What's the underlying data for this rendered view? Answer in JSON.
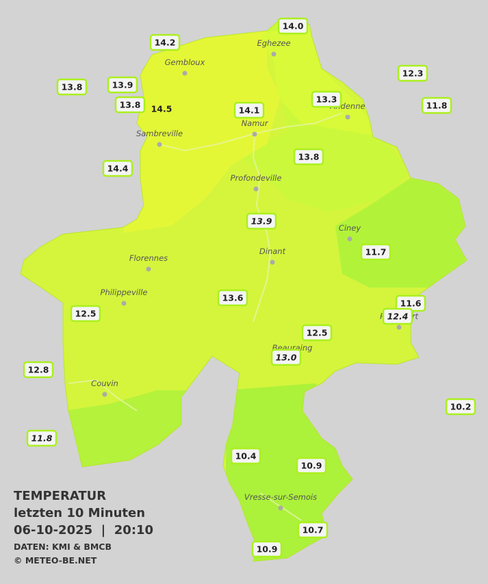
{
  "legend": {
    "title": "TEMPERATUR",
    "subtitle": "letzten 10 Minuten",
    "datetime": "06-10-2025  |  20:10",
    "source": "DATEN: KMI & BMCB",
    "copyright": "© METEO-BE.NET"
  },
  "cities": [
    "Eghezee",
    "Gembloux",
    "Andenne",
    "Namur",
    "Sambreville",
    "Profondeville",
    "Ciney",
    "Dinant",
    "Florennes",
    "Philippeville",
    "Rochefort",
    "Beauraing",
    "Couvin",
    "Vresse-sur-Semois"
  ],
  "stations": [
    {
      "label": "14.0",
      "italic": false
    },
    {
      "label": "14.2",
      "italic": false
    },
    {
      "label": "13.9",
      "italic": false
    },
    {
      "label": "13.8",
      "italic": false
    },
    {
      "label": "13.8",
      "italic": false
    },
    {
      "label": "14.5",
      "italic": false
    },
    {
      "label": "14.1",
      "italic": false
    },
    {
      "label": "13.3",
      "italic": false
    },
    {
      "label": "12.3",
      "italic": false
    },
    {
      "label": "11.8",
      "italic": false
    },
    {
      "label": "14.4",
      "italic": false
    },
    {
      "label": "13.8",
      "italic": false
    },
    {
      "label": "13.9",
      "italic": true
    },
    {
      "label": "11.7",
      "italic": false
    },
    {
      "label": "13.6",
      "italic": false
    },
    {
      "label": "11.6",
      "italic": false
    },
    {
      "label": "12.4",
      "italic": true
    },
    {
      "label": "12.5",
      "italic": false
    },
    {
      "label": "12.5",
      "italic": false
    },
    {
      "label": "13.0",
      "italic": true
    },
    {
      "label": "12.8",
      "italic": false
    },
    {
      "label": "10.2",
      "italic": false
    },
    {
      "label": "11.8",
      "italic": true
    },
    {
      "label": "10.4",
      "italic": false
    },
    {
      "label": "10.9",
      "italic": false
    },
    {
      "label": "10.7",
      "italic": false
    },
    {
      "label": "10.9",
      "italic": false
    }
  ]
}
